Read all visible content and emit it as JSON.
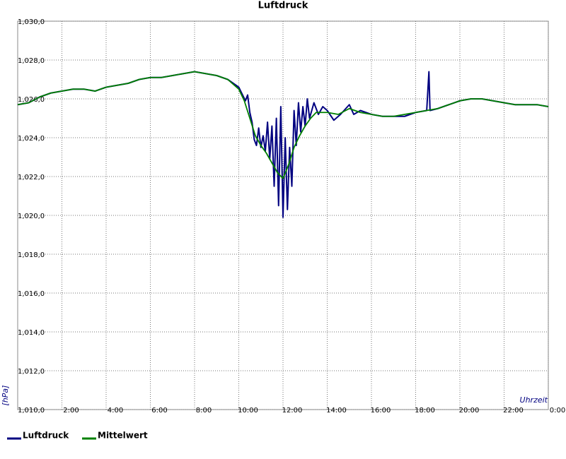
{
  "chart_data": {
    "type": "line",
    "title": "Luftdruck",
    "x_label": "Uhrzeit",
    "y_label": "[hPa]",
    "xlim": [
      0,
      24
    ],
    "ylim": [
      1010,
      1030
    ],
    "grid": true,
    "legend": "bottom-left",
    "xticks": [
      {
        "value": 2,
        "label": "2:00"
      },
      {
        "value": 4,
        "label": "4:00"
      },
      {
        "value": 6,
        "label": "6:00"
      },
      {
        "value": 8,
        "label": "8:00"
      },
      {
        "value": 10,
        "label": "10:00"
      },
      {
        "value": 12,
        "label": "12:00"
      },
      {
        "value": 14,
        "label": "14:00"
      },
      {
        "value": 16,
        "label": "16:00"
      },
      {
        "value": 18,
        "label": "18:00"
      },
      {
        "value": 20,
        "label": "20:00"
      },
      {
        "value": 22,
        "label": "22:00"
      },
      {
        "value": 24,
        "label": "0:00"
      }
    ],
    "yticks": [
      {
        "value": 1010,
        "label": "1,010,0"
      },
      {
        "value": 1012,
        "label": "1,012,0"
      },
      {
        "value": 1014,
        "label": "1,014,0"
      },
      {
        "value": 1016,
        "label": "1,016,0"
      },
      {
        "value": 1018,
        "label": "1,018,0"
      },
      {
        "value": 1020,
        "label": "1,020,0"
      },
      {
        "value": 1022,
        "label": "1,022,0"
      },
      {
        "value": 1024,
        "label": "1,024,0"
      },
      {
        "value": 1026,
        "label": "1,026,0"
      },
      {
        "value": 1028,
        "label": "1,028,0"
      },
      {
        "value": 1030,
        "label": "1,030,0"
      }
    ],
    "series": [
      {
        "name": "Luftdruck",
        "color": "#000080",
        "x": [
          0,
          0.5,
          1,
          1.5,
          2,
          2.5,
          3,
          3.5,
          4,
          4.5,
          5,
          5.5,
          6,
          6.5,
          7,
          7.5,
          8,
          8.5,
          9,
          9.5,
          10,
          10.3,
          10.4,
          10.5,
          10.6,
          10.7,
          10.8,
          10.9,
          11.0,
          11.1,
          11.2,
          11.3,
          11.4,
          11.5,
          11.6,
          11.7,
          11.8,
          11.9,
          12.0,
          12.1,
          12.2,
          12.3,
          12.4,
          12.5,
          12.6,
          12.7,
          12.8,
          12.9,
          13.0,
          13.1,
          13.2,
          13.4,
          13.6,
          13.8,
          14,
          14.3,
          14.6,
          15,
          15.2,
          15.5,
          16,
          16.5,
          17,
          17.5,
          18,
          18.5,
          18.6,
          18.65,
          19,
          19.5,
          20,
          20.5,
          21,
          21.5,
          22,
          22.5,
          23,
          23.5,
          24
        ],
        "values": [
          1025.7,
          1025.8,
          1026.1,
          1026.3,
          1026.4,
          1026.5,
          1026.5,
          1026.4,
          1026.6,
          1026.7,
          1026.8,
          1027.0,
          1027.1,
          1027.1,
          1027.2,
          1027.3,
          1027.4,
          1027.3,
          1027.2,
          1027.0,
          1026.6,
          1025.9,
          1026.2,
          1025.3,
          1024.8,
          1023.9,
          1023.6,
          1024.5,
          1023.5,
          1024.1,
          1023.3,
          1024.8,
          1022.9,
          1024.6,
          1021.5,
          1025.0,
          1020.5,
          1025.6,
          1019.9,
          1024.0,
          1020.3,
          1023.5,
          1021.5,
          1025.4,
          1023.6,
          1025.8,
          1024.3,
          1025.6,
          1024.6,
          1026.0,
          1025.0,
          1025.8,
          1025.2,
          1025.6,
          1025.4,
          1024.9,
          1025.2,
          1025.7,
          1025.2,
          1025.4,
          1025.2,
          1025.1,
          1025.1,
          1025.1,
          1025.3,
          1025.4,
          1027.4,
          1025.4,
          1025.5,
          1025.7,
          1025.9,
          1026.0,
          1026.0,
          1025.9,
          1025.8,
          1025.7,
          1025.7,
          1025.7,
          1025.6
        ]
      },
      {
        "name": "Mittelwert",
        "color": "#008000",
        "x": [
          0,
          0.5,
          1,
          1.5,
          2,
          2.5,
          3,
          3.5,
          4,
          4.5,
          5,
          5.5,
          6,
          6.5,
          7,
          7.5,
          8,
          8.5,
          9,
          9.5,
          10,
          10.25,
          10.5,
          10.75,
          11,
          11.25,
          11.5,
          11.75,
          12,
          12.25,
          12.5,
          12.75,
          13,
          13.25,
          13.5,
          14,
          14.5,
          15,
          15.5,
          16,
          16.5,
          17,
          17.5,
          18,
          18.5,
          19,
          19.5,
          20,
          20.5,
          21,
          21.5,
          22,
          22.5,
          23,
          23.5,
          24
        ],
        "values": [
          1025.7,
          1025.8,
          1026.1,
          1026.3,
          1026.4,
          1026.5,
          1026.5,
          1026.4,
          1026.6,
          1026.7,
          1026.8,
          1027.0,
          1027.1,
          1027.1,
          1027.2,
          1027.3,
          1027.4,
          1027.3,
          1027.2,
          1027.0,
          1026.5,
          1025.9,
          1025.0,
          1024.1,
          1023.6,
          1023.2,
          1022.7,
          1022.2,
          1021.9,
          1022.6,
          1023.5,
          1024.1,
          1024.6,
          1025.0,
          1025.3,
          1025.3,
          1025.2,
          1025.5,
          1025.3,
          1025.2,
          1025.1,
          1025.1,
          1025.2,
          1025.3,
          1025.4,
          1025.5,
          1025.7,
          1025.9,
          1026.0,
          1026.0,
          1025.9,
          1025.8,
          1025.7,
          1025.7,
          1025.7,
          1025.6
        ]
      }
    ]
  }
}
